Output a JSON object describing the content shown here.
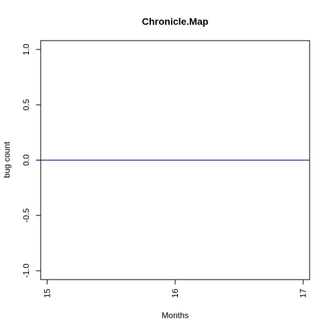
{
  "chart_data": {
    "type": "line",
    "title": "Chronicle.Map",
    "xlabel": "Months",
    "ylabel": "bug count",
    "xlim": [
      14.95,
      17.05
    ],
    "ylim": [
      -1.08,
      1.08
    ],
    "x_ticks": [
      15,
      16,
      17
    ],
    "x_tick_labels": [
      "15",
      "16",
      "17"
    ],
    "y_ticks": [
      -1.0,
      -0.5,
      0.0,
      0.5,
      1.0
    ],
    "y_tick_labels": [
      "-1.0",
      "-0.5",
      "0.0",
      "0.5",
      "1.0"
    ],
    "grid": false,
    "series": [
      {
        "x": [
          14.95,
          17.05
        ],
        "y": [
          0,
          0
        ],
        "color": "#00008B"
      }
    ]
  }
}
